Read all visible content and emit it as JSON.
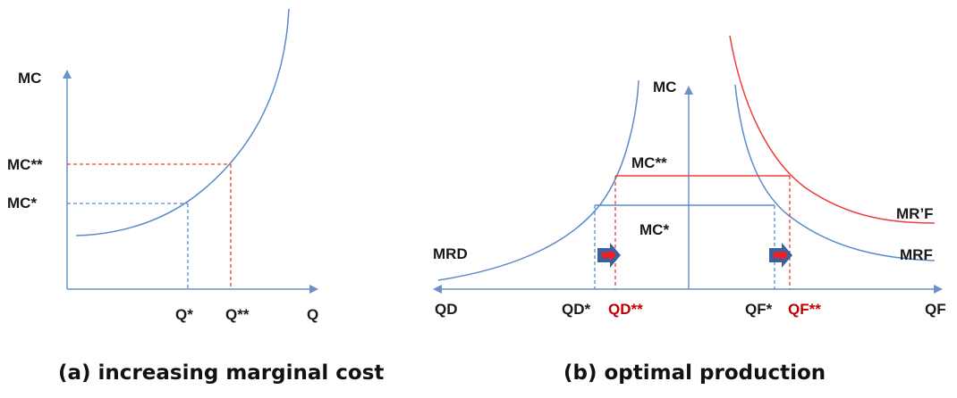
{
  "panel_a": {
    "y_axis_label": "MC",
    "x_axis_label": "Q",
    "mc_high_label": "MC**",
    "mc_low_label": "MC*",
    "q_low_label": "Q*",
    "q_high_label": "Q**",
    "caption": "(a) increasing marginal cost"
  },
  "panel_b": {
    "y_axis_label": "MC",
    "left_axis_label": "QD",
    "right_axis_label": "QF",
    "mc_high_label": "MC**",
    "mc_low_label": "MC*",
    "mrd_label": "MRD",
    "mrf_label": "MRF",
    "mrf_prime_label": "MR’F",
    "qd_star_label": "QD*",
    "qd_star2_label": "QD**",
    "qf_star_label": "QF*",
    "qf_star2_label": "QF**",
    "caption": "(b) optimal production"
  },
  "colors": {
    "blue_curve": "#5b8cc7",
    "red_line": "#e8403a",
    "axis": "#6a92c8",
    "arrow_blue": "#3d5f9a",
    "arrow_red": "#ff1a1a",
    "label_red": "#c00000"
  }
}
